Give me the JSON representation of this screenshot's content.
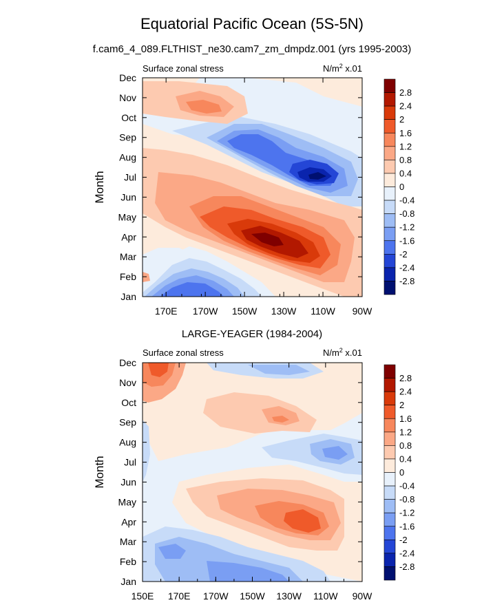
{
  "title": "Equatorial Pacific Ocean (5S-5N)",
  "subtitle": "f.cam6_4_089.FLTHIST_ne30.cam7_zm_dmpdz.001 (yrs 1995-2003)",
  "chart_data": [
    {
      "type": "heatmap",
      "panel_title": "",
      "left_label": "Surface zonal stress",
      "right_label_main": "N/m",
      "right_label_sup": "2",
      "right_label_suffix": " x.01",
      "ylabel": "Month",
      "months": [
        "Jan",
        "Feb",
        "Mar",
        "Apr",
        "May",
        "Jun",
        "Jul",
        "Aug",
        "Sep",
        "Oct",
        "Nov",
        "Dec"
      ],
      "x_ticks": [
        "170E",
        "170W",
        "150W",
        "130W",
        "110W",
        "90W"
      ],
      "x_range": [
        "~158E",
        "90W"
      ],
      "features": [
        {
          "name": "negative-jan-feb-west",
          "value": -2.4,
          "month": "Jan-Feb",
          "lon": "170E-160W"
        },
        {
          "name": "positive-apr-peak",
          "value": 2.8,
          "month": "Mar-Apr",
          "lon": "140W-120W"
        },
        {
          "name": "negative-jul-peak",
          "value": -2.8,
          "month": "Jul",
          "lon": "115W-105W"
        },
        {
          "name": "negative-sep",
          "value": -2.0,
          "month": "Sep",
          "lon": "160W-140W"
        },
        {
          "name": "positive-oct-nov-west",
          "value": 1.2,
          "month": "Oct-Nov",
          "lon": "165E-175W"
        }
      ]
    },
    {
      "type": "heatmap",
      "panel_title": "LARGE-YEAGER (1984-2004)",
      "left_label": "Surface zonal stress",
      "right_label_main": "N/m",
      "right_label_sup": "2",
      "right_label_suffix": " x.01",
      "ylabel": "Month",
      "months": [
        "Jan",
        "Feb",
        "Mar",
        "Apr",
        "May",
        "Jun",
        "Jul",
        "Aug",
        "Sep",
        "Oct",
        "Nov",
        "Dec"
      ],
      "x_ticks": [
        "150E",
        "170E",
        "170W",
        "150W",
        "130W",
        "110W",
        "90W"
      ],
      "x_range": [
        "150E",
        "90W"
      ],
      "features": [
        {
          "name": "positive-dec-west",
          "value": 2.4,
          "month": "Dec",
          "lon": "152E-160E"
        },
        {
          "name": "positive-apr-peak",
          "value": 2.0,
          "month": "Apr",
          "lon": "135W-115W"
        },
        {
          "name": "positive-sep",
          "value": 1.2,
          "month": "Sep",
          "lon": "135W-128W"
        },
        {
          "name": "negative-jan-feb",
          "value": -1.2,
          "month": "Jan-Feb",
          "lon": "170E-140W"
        },
        {
          "name": "negative-jul-east",
          "value": -1.2,
          "month": "Jul",
          "lon": "115W-95W"
        }
      ]
    }
  ],
  "colorbar": {
    "levels": [
      "2.8",
      "2.4",
      "2",
      "1.6",
      "1.2",
      "0.8",
      "0.4",
      "0",
      "-0.4",
      "-0.8",
      "-1.2",
      "-1.6",
      "-2",
      "-2.4",
      "-2.8"
    ],
    "colors": [
      "#7f0000",
      "#b21800",
      "#d93a0a",
      "#ef5a2a",
      "#f7875c",
      "#fba886",
      "#fdcab0",
      "#fdebdc",
      "#e8f1fb",
      "#c7dbf8",
      "#9ebdf5",
      "#7a9ef3",
      "#4d74ee",
      "#2446d6",
      "#0a24ad",
      "#001070"
    ]
  }
}
